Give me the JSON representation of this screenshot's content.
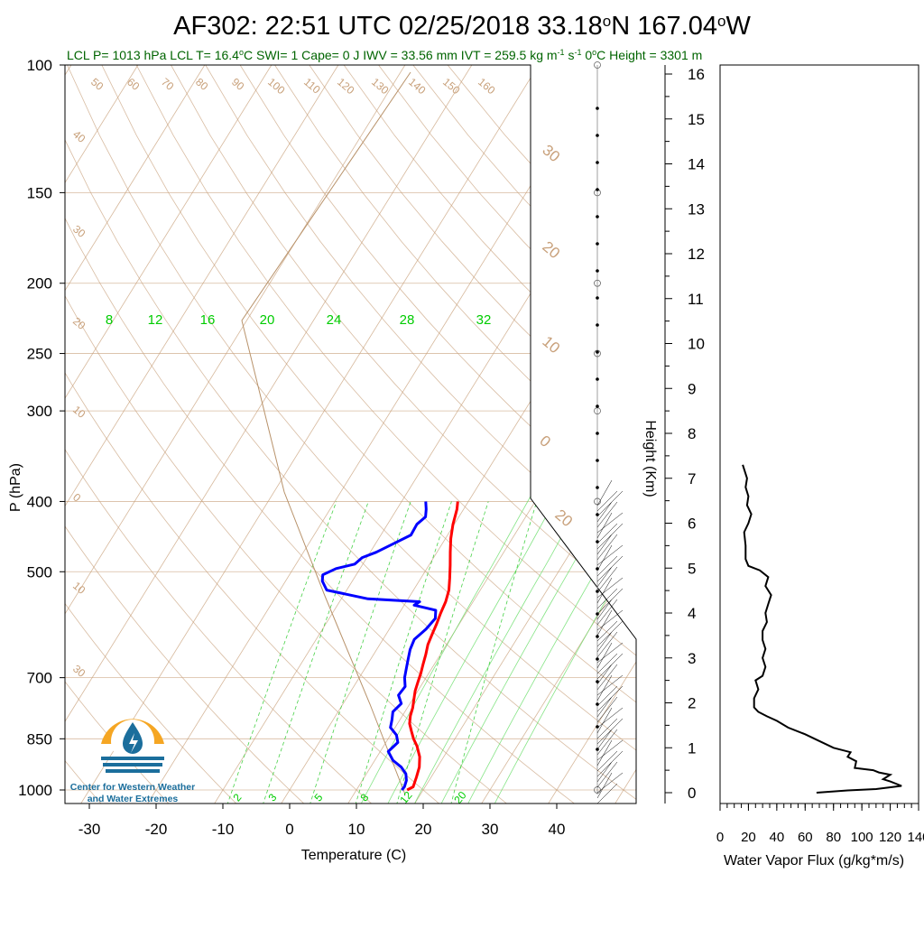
{
  "title": {
    "prefix": "AF302: 22:51 UTC 02/25/2018  33.18",
    "lat_suffix": "N 167.04",
    "lon_suffix": "W",
    "degree": "o"
  },
  "subtitle": {
    "part1": "LCL P= 1013 hPa  LCL T= 16.4",
    "part2": "C  SWI= 1  Cape= 0 J  IWV = 33.56 mm  IVT = 259.5 kg m",
    "part3": " s",
    "part4": "  0",
    "part5": "C Height = 3301 m",
    "sup_deg": "o",
    "sup_m1": "-1",
    "sup_s1": "-1"
  },
  "colors": {
    "temperature": "#ff0000",
    "dewpoint": "#0000ff",
    "dry_adiabat": "#c8a07a",
    "isotherm": "#c8a07a",
    "mixing_ratio": "#33cc33",
    "moist_adiabat": "#66dd66",
    "label_green": "#00cc00",
    "subtitle_green": "#006400",
    "logo_orange": "#f5a623",
    "logo_blue": "#1b6e9c"
  },
  "chart_data": [
    {
      "type": "line",
      "subtype": "skew-t",
      "xlabel": "Temperature (C)",
      "ylabel": "P (hPa)",
      "x_ticks": [
        -30,
        -20,
        -10,
        0,
        10,
        20,
        30,
        40
      ],
      "x_range": [
        -34,
        36
      ],
      "p_ticks": [
        100,
        150,
        200,
        250,
        300,
        400,
        500,
        700,
        850,
        1000
      ],
      "p_range": [
        1050,
        100
      ],
      "isotherm_labels": [
        50,
        60,
        70,
        80,
        90,
        100,
        110,
        120,
        130,
        140,
        150,
        160,
        40,
        30,
        30,
        20,
        20,
        10,
        10,
        0,
        0,
        10,
        20,
        30
      ],
      "mixing_ratio_labels_top": [
        "8",
        "12",
        "16",
        "20",
        "24",
        "28",
        "32"
      ],
      "mixing_ratio_labels_bottom": [
        "2",
        "3",
        "5",
        "8",
        "12",
        "20"
      ],
      "series": [
        {
          "role": "temperature",
          "points": [
            [
              17.6,
              1000
            ],
            [
              18.2,
              990
            ],
            [
              17.8,
              960
            ],
            [
              17.3,
              930
            ],
            [
              16.4,
              900
            ],
            [
              15.0,
              870
            ],
            [
              13.8,
              850
            ],
            [
              12.8,
              830
            ],
            [
              11.8,
              810
            ],
            [
              11.2,
              790
            ],
            [
              10.8,
              770
            ],
            [
              10.2,
              750
            ],
            [
              9.6,
              730
            ],
            [
              9.2,
              710
            ],
            [
              8.8,
              690
            ],
            [
              8.3,
              670
            ],
            [
              7.8,
              650
            ],
            [
              7.2,
              630
            ],
            [
              6.9,
              610
            ],
            [
              6.6,
              590
            ],
            [
              6.2,
              570
            ],
            [
              5.9,
              550
            ],
            [
              5.3,
              530
            ],
            [
              4.3,
              510
            ],
            [
              3.2,
              490
            ],
            [
              2.0,
              470
            ],
            [
              0.8,
              450
            ],
            [
              -0.2,
              430
            ],
            [
              -1.0,
              410
            ],
            [
              -1.6,
              400
            ]
          ]
        },
        {
          "role": "dewpoint",
          "points": [
            [
              16.8,
              1000
            ],
            [
              16.9,
              990
            ],
            [
              16.6,
              970
            ],
            [
              15.9,
              950
            ],
            [
              14.6,
              930
            ],
            [
              12.7,
              910
            ],
            [
              11.2,
              885
            ],
            [
              11.8,
              860
            ],
            [
              10.9,
              840
            ],
            [
              9.3,
              820
            ],
            [
              8.8,
              800
            ],
            [
              8.2,
              780
            ],
            [
              8.7,
              760
            ],
            [
              7.5,
              740
            ],
            [
              7.7,
              720
            ],
            [
              6.8,
              700
            ],
            [
              6.2,
              680
            ],
            [
              5.6,
              660
            ],
            [
              5.0,
              640
            ],
            [
              4.7,
              620
            ],
            [
              5.5,
              600
            ],
            [
              5.9,
              580
            ],
            [
              5.2,
              565
            ],
            [
              1.5,
              556
            ],
            [
              2.0,
              550
            ],
            [
              -6.0,
              545
            ],
            [
              -13.0,
              530
            ],
            [
              -14.5,
              515
            ],
            [
              -15.0,
              505
            ],
            [
              -13.6,
              495
            ],
            [
              -11.2,
              488
            ],
            [
              -10.7,
              478
            ],
            [
              -9.1,
              470
            ],
            [
              -7.4,
              458
            ],
            [
              -5.5,
              445
            ],
            [
              -5.6,
              430
            ],
            [
              -5.0,
              420
            ],
            [
              -5.6,
              410
            ],
            [
              -6.4,
              400
            ]
          ]
        }
      ]
    },
    {
      "type": "line",
      "subtype": "wind-profile",
      "ylabel": "Height (Km)",
      "y_ticks": [
        0,
        1,
        2,
        3,
        4,
        5,
        6,
        7,
        8,
        9,
        10,
        11,
        12,
        13,
        14,
        15,
        16
      ],
      "y_range": [
        0,
        16.4
      ]
    },
    {
      "type": "line",
      "xlabel": "Water Vapor Flux (g/kg*m/s)",
      "x_ticks": [
        0,
        20,
        40,
        60,
        80,
        100,
        120,
        140
      ],
      "x_range": [
        0,
        140
      ],
      "y_range": [
        0,
        16.4
      ],
      "series": [
        {
          "role": "water_vapor_flux",
          "points": [
            [
              68,
              0.0
            ],
            [
              90,
              0.05
            ],
            [
              110,
              0.08
            ],
            [
              128,
              0.15
            ],
            [
              120,
              0.25
            ],
            [
              115,
              0.3
            ],
            [
              120,
              0.4
            ],
            [
              112,
              0.45
            ],
            [
              108,
              0.5
            ],
            [
              95,
              0.55
            ],
            [
              96,
              0.7
            ],
            [
              90,
              0.8
            ],
            [
              92,
              0.9
            ],
            [
              80,
              1.0
            ],
            [
              70,
              1.15
            ],
            [
              60,
              1.3
            ],
            [
              48,
              1.45
            ],
            [
              40,
              1.6
            ],
            [
              33,
              1.7
            ],
            [
              27,
              1.8
            ],
            [
              24,
              1.9
            ],
            [
              24,
              2.1
            ],
            [
              27,
              2.3
            ],
            [
              25,
              2.5
            ],
            [
              30,
              2.6
            ],
            [
              32,
              2.8
            ],
            [
              30,
              3.0
            ],
            [
              32,
              3.2
            ],
            [
              30,
              3.4
            ],
            [
              30,
              3.6
            ],
            [
              33,
              3.8
            ],
            [
              32,
              4.0
            ],
            [
              34,
              4.2
            ],
            [
              36,
              4.4
            ],
            [
              32,
              4.6
            ],
            [
              34,
              4.8
            ],
            [
              28,
              4.95
            ],
            [
              20,
              5.05
            ],
            [
              18,
              5.2
            ],
            [
              18,
              5.5
            ],
            [
              17,
              5.8
            ],
            [
              20,
              6.0
            ],
            [
              22,
              6.2
            ],
            [
              19,
              6.4
            ],
            [
              20,
              6.6
            ],
            [
              18,
              6.8
            ],
            [
              19,
              7.0
            ],
            [
              17,
              7.2
            ],
            [
              16,
              7.3
            ]
          ]
        }
      ]
    }
  ],
  "logo": {
    "line1": "Center for Western Weather",
    "line2": "and Water Extremes"
  }
}
